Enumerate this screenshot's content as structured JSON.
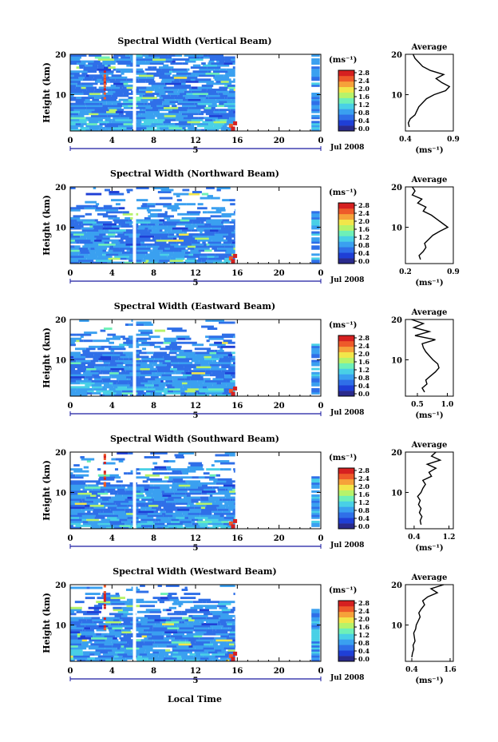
{
  "common": {
    "ylabel": "Height (km)",
    "xlabel": "Local Time",
    "date_label": "Jul 2008",
    "day_label": "5",
    "unit_label": "(ms⁻¹)",
    "avg_title": "Average",
    "avg_unit": "(ms⁻¹)",
    "x_ticks": [
      "0",
      "4",
      "8",
      "12",
      "16",
      "20",
      "0"
    ],
    "y_ticks": [
      "20",
      "10"
    ],
    "colorbar_ticks": [
      "2.8",
      "2.4",
      "2.0",
      "1.6",
      "1.2",
      "0.8",
      "0.4",
      "0.0"
    ],
    "colormap": [
      "#2a2a8c",
      "#1f3fd6",
      "#2f6fe8",
      "#3aa0f0",
      "#49d0e6",
      "#6ef0b8",
      "#b6f36a",
      "#f2e64a",
      "#f6a23a",
      "#ee5a2a",
      "#d62020"
    ]
  },
  "chart_data": [
    {
      "type": "heatmap",
      "title": "Spectral Width (Vertical Beam)",
      "xlim": [
        0,
        24
      ],
      "ylim": [
        1,
        20
      ],
      "clim": [
        0.0,
        2.8
      ],
      "avg": {
        "xlim": [
          0.4,
          0.9
        ],
        "xticks": [
          "0.4",
          "0.9"
        ],
        "heights": [
          2,
          3,
          4,
          5,
          6,
          7,
          8,
          9,
          10,
          11,
          12,
          13,
          14,
          15,
          16,
          17,
          18,
          19,
          20
        ],
        "values": [
          0.44,
          0.43,
          0.45,
          0.5,
          0.52,
          0.54,
          0.58,
          0.62,
          0.7,
          0.82,
          0.86,
          0.78,
          0.72,
          0.8,
          0.66,
          0.58,
          0.54,
          0.5,
          0.48
        ]
      }
    },
    {
      "type": "heatmap",
      "title": "Spectral Width (Northward Beam)",
      "xlim": [
        0,
        24
      ],
      "ylim": [
        1,
        20
      ],
      "clim": [
        0.0,
        2.8
      ],
      "avg": {
        "xlim": [
          0.2,
          0.9
        ],
        "xticks": [
          "0.2",
          "0.9"
        ],
        "heights": [
          2,
          3,
          4,
          5,
          6,
          7,
          8,
          9,
          10,
          11,
          12,
          13,
          14,
          15,
          16,
          17,
          18,
          19,
          20
        ],
        "values": [
          0.42,
          0.4,
          0.46,
          0.5,
          0.48,
          0.54,
          0.6,
          0.7,
          0.82,
          0.74,
          0.66,
          0.58,
          0.46,
          0.5,
          0.38,
          0.44,
          0.3,
          0.34,
          0.3
        ]
      }
    },
    {
      "type": "heatmap",
      "title": "Spectral Width (Eastward Beam)",
      "xlim": [
        0,
        24
      ],
      "ylim": [
        1,
        20
      ],
      "clim": [
        0.0,
        2.8
      ],
      "avg": {
        "xlim": [
          0.3,
          1.1
        ],
        "xticks": [
          "0.5",
          "1.0"
        ],
        "heights": [
          2,
          3,
          4,
          5,
          6,
          7,
          8,
          9,
          10,
          11,
          12,
          13,
          14,
          15,
          16,
          17,
          18,
          19,
          20
        ],
        "values": [
          0.62,
          0.58,
          0.66,
          0.64,
          0.72,
          0.8,
          0.86,
          0.84,
          0.76,
          0.7,
          0.64,
          0.6,
          0.58,
          0.8,
          0.46,
          0.7,
          0.44,
          0.6,
          0.4
        ]
      }
    },
    {
      "type": "heatmap",
      "title": "Spectral Width (Southward Beam)",
      "xlim": [
        0,
        24
      ],
      "ylim": [
        1,
        20
      ],
      "clim": [
        0.0,
        2.8
      ],
      "avg": {
        "xlim": [
          0.2,
          1.3
        ],
        "xticks": [
          "0.4",
          "1.2"
        ],
        "heights": [
          2,
          3,
          4,
          5,
          6,
          7,
          8,
          9,
          10,
          11,
          12,
          13,
          14,
          15,
          16,
          17,
          18,
          19,
          20
        ],
        "values": [
          0.56,
          0.54,
          0.58,
          0.52,
          0.56,
          0.5,
          0.54,
          0.48,
          0.56,
          0.6,
          0.66,
          0.6,
          0.8,
          0.74,
          0.9,
          0.7,
          1.0,
          0.8,
          0.9
        ]
      }
    },
    {
      "type": "heatmap",
      "title": "Spectral Width (Westward Beam)",
      "xlim": [
        0,
        24
      ],
      "ylim": [
        1,
        20
      ],
      "clim": [
        0.0,
        2.8
      ],
      "avg": {
        "xlim": [
          0.2,
          1.7
        ],
        "xticks": [
          "0.4",
          "1.6"
        ],
        "heights": [
          2,
          3,
          4,
          5,
          6,
          7,
          8,
          9,
          10,
          11,
          12,
          13,
          14,
          15,
          16,
          17,
          18,
          19,
          20
        ],
        "values": [
          0.4,
          0.42,
          0.46,
          0.44,
          0.5,
          0.48,
          0.46,
          0.52,
          0.54,
          0.6,
          0.66,
          0.62,
          0.7,
          0.8,
          0.74,
          0.9,
          1.2,
          1.0,
          1.4
        ]
      }
    }
  ]
}
